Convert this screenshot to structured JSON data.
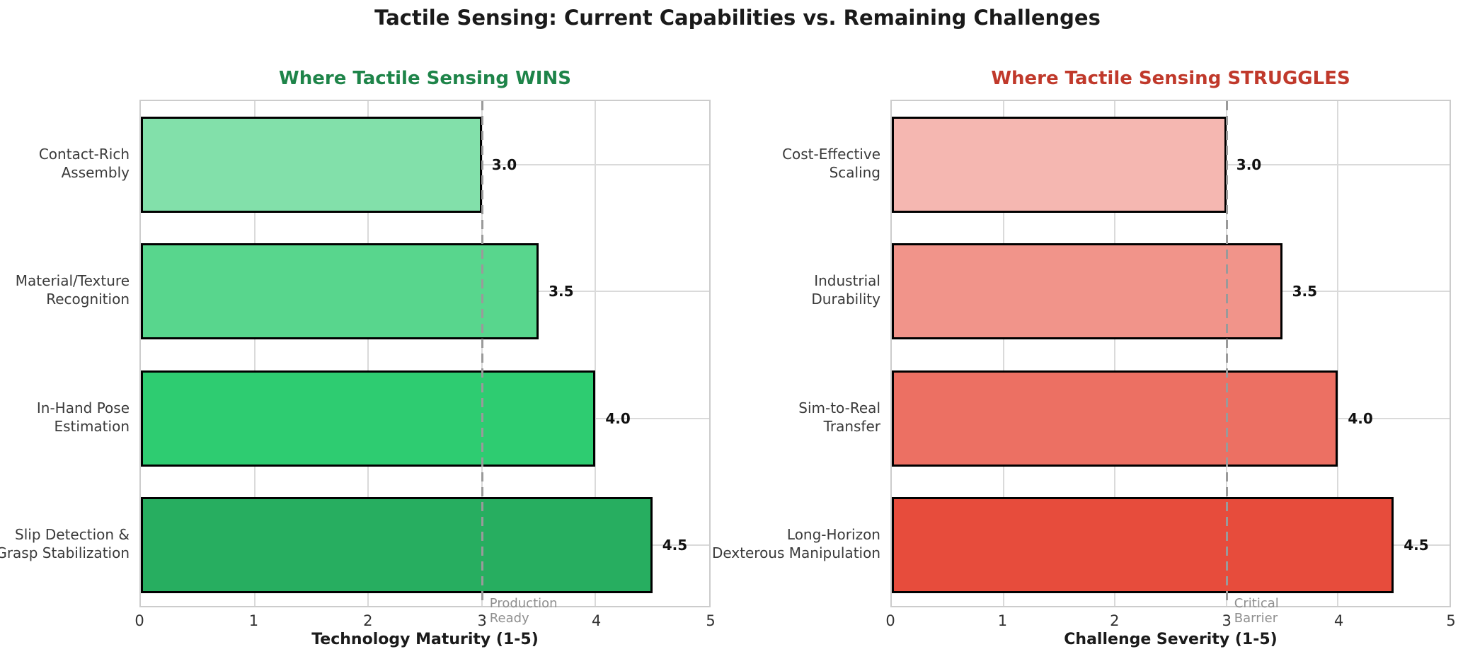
{
  "figure": {
    "title": "Tactile Sensing: Current Capabilities vs. Remaining Challenges",
    "title_color": "#1a1a1a",
    "background": "#ffffff"
  },
  "chart_data": [
    {
      "type": "bar",
      "orientation": "horizontal",
      "title": "Where Tactile Sensing WINS",
      "title_color": "#1e8449",
      "xlabel": "Technology Maturity (1-5)",
      "xlim": [
        0,
        5
      ],
      "xticks": [
        "0",
        "1",
        "2",
        "3",
        "4",
        "5"
      ],
      "grid": true,
      "categories": [
        "Contact-Rich Assembly",
        "Material/Texture Recognition",
        "In-Hand Pose Estimation",
        "Slip Detection & Grasp Stabilization"
      ],
      "category_lines": [
        [
          "Contact-Rich",
          "Assembly"
        ],
        [
          "Material/Texture",
          "Recognition"
        ],
        [
          "In-Hand Pose",
          "Estimation"
        ],
        [
          "Slip Detection &",
          "Grasp Stabilization"
        ]
      ],
      "values": [
        3.0,
        3.5,
        4.0,
        4.5
      ],
      "value_labels": [
        "3.0",
        "3.5",
        "4.0",
        "4.5"
      ],
      "bar_colors": [
        "#82e0aa",
        "#58d68d",
        "#2ecc71",
        "#27ae60"
      ],
      "bar_edge_color": "#000000",
      "ref_line": {
        "x": 3,
        "style": "dashed",
        "color": "#9a9a9a",
        "label": "Production Ready",
        "label_lines": [
          "Production",
          "Ready"
        ],
        "label_color": "#8f8f8f"
      }
    },
    {
      "type": "bar",
      "orientation": "horizontal",
      "title": "Where Tactile Sensing STRUGGLES",
      "title_color": "#c0392b",
      "xlabel": "Challenge Severity (1-5)",
      "xlim": [
        0,
        5
      ],
      "xticks": [
        "0",
        "1",
        "2",
        "3",
        "4",
        "5"
      ],
      "grid": true,
      "categories": [
        "Cost-Effective Scaling",
        "Industrial Durability",
        "Sim-to-Real Transfer",
        "Long-Horizon Dexterous Manipulation"
      ],
      "category_lines": [
        [
          "Cost-Effective",
          "Scaling"
        ],
        [
          "Industrial",
          "Durability"
        ],
        [
          "Sim-to-Real",
          "Transfer"
        ],
        [
          "Long-Horizon",
          "Dexterous Manipulation"
        ]
      ],
      "values": [
        3.0,
        3.5,
        4.0,
        4.5
      ],
      "value_labels": [
        "3.0",
        "3.5",
        "4.0",
        "4.5"
      ],
      "bar_colors": [
        "#f5b7b1",
        "#f1948a",
        "#ec7063",
        "#e74c3c"
      ],
      "bar_edge_color": "#000000",
      "ref_line": {
        "x": 3,
        "style": "dashed",
        "color": "#9a9a9a",
        "label": "Critical Barrier",
        "label_lines": [
          "Critical",
          "Barrier"
        ],
        "label_color": "#8f8f8f"
      }
    }
  ]
}
